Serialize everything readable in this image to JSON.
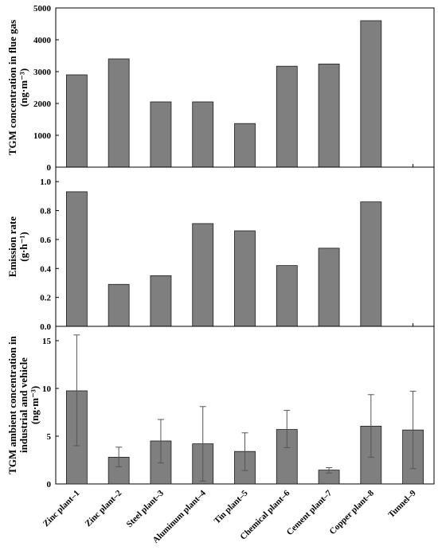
{
  "chart_data": [
    {
      "type": "bar",
      "categories": [
        "Zinc plant–1",
        "Zinc plant–2",
        "Steel plant–3",
        "Aluminum plant–4",
        "Tin plant–5",
        "Chemical plant–6",
        "Cement plant–7",
        "Copper plant–8",
        "Tunnel–9"
      ],
      "values": [
        2900,
        3400,
        2050,
        2050,
        1370,
        3170,
        3240,
        4600,
        null
      ],
      "ylabel_lines": [
        "TGM concentration in flue gas",
        "(ng·m⁻³)"
      ],
      "ylim": [
        0,
        5000
      ],
      "yticks": [
        0,
        1000,
        2000,
        3000,
        4000,
        5000
      ],
      "ytick_labels": [
        "0",
        "1000",
        "2000",
        "3000",
        "4000",
        "5000"
      ],
      "colors": {
        "bar": "#7f7f7f"
      }
    },
    {
      "type": "bar",
      "categories": [
        "Zinc plant–1",
        "Zinc plant–2",
        "Steel plant–3",
        "Aluminum plant–4",
        "Tin plant–5",
        "Chemical plant–6",
        "Cement plant–7",
        "Copper plant–8",
        "Tunnel–9"
      ],
      "values": [
        0.93,
        0.29,
        0.35,
        0.71,
        0.66,
        0.42,
        0.54,
        0.86,
        null
      ],
      "ylabel_lines": [
        "Emission rate",
        "(g·h⁻¹)"
      ],
      "ylim": [
        0,
        1.1
      ],
      "yticks": [
        0,
        0.2,
        0.4,
        0.6,
        0.8,
        1.0
      ],
      "ytick_labels": [
        "0.0",
        "0.2",
        "0.4",
        "0.6",
        "0.8",
        "1.0"
      ],
      "colors": {
        "bar": "#7f7f7f"
      }
    },
    {
      "type": "bar",
      "categories": [
        "Zinc plant–1",
        "Zinc plant–2",
        "Steel plant–3",
        "Aluminum plant–4",
        "Tin plant–5",
        "Chemical plant–6",
        "Cement plant–7",
        "Copper plant–8",
        "Tunnel–9"
      ],
      "values": [
        9.75,
        2.8,
        4.5,
        4.2,
        3.4,
        5.7,
        1.45,
        6.05,
        5.65
      ],
      "error_low": [
        4.0,
        1.8,
        2.2,
        0.3,
        1.4,
        3.8,
        1.15,
        2.8,
        1.6
      ],
      "error_high": [
        15.6,
        3.85,
        6.75,
        8.1,
        5.35,
        7.7,
        1.7,
        9.35,
        9.7
      ],
      "ylabel_lines": [
        "TGM  ambient concentration in",
        "industrial and vehicle",
        "(ng·m⁻³)"
      ],
      "ylim": [
        0,
        16.5
      ],
      "yticks": [
        0,
        5,
        10,
        15
      ],
      "ytick_labels": [
        "0",
        "5",
        "10",
        "15"
      ],
      "colors": {
        "bar": "#7f7f7f",
        "error": "#555555"
      }
    }
  ]
}
